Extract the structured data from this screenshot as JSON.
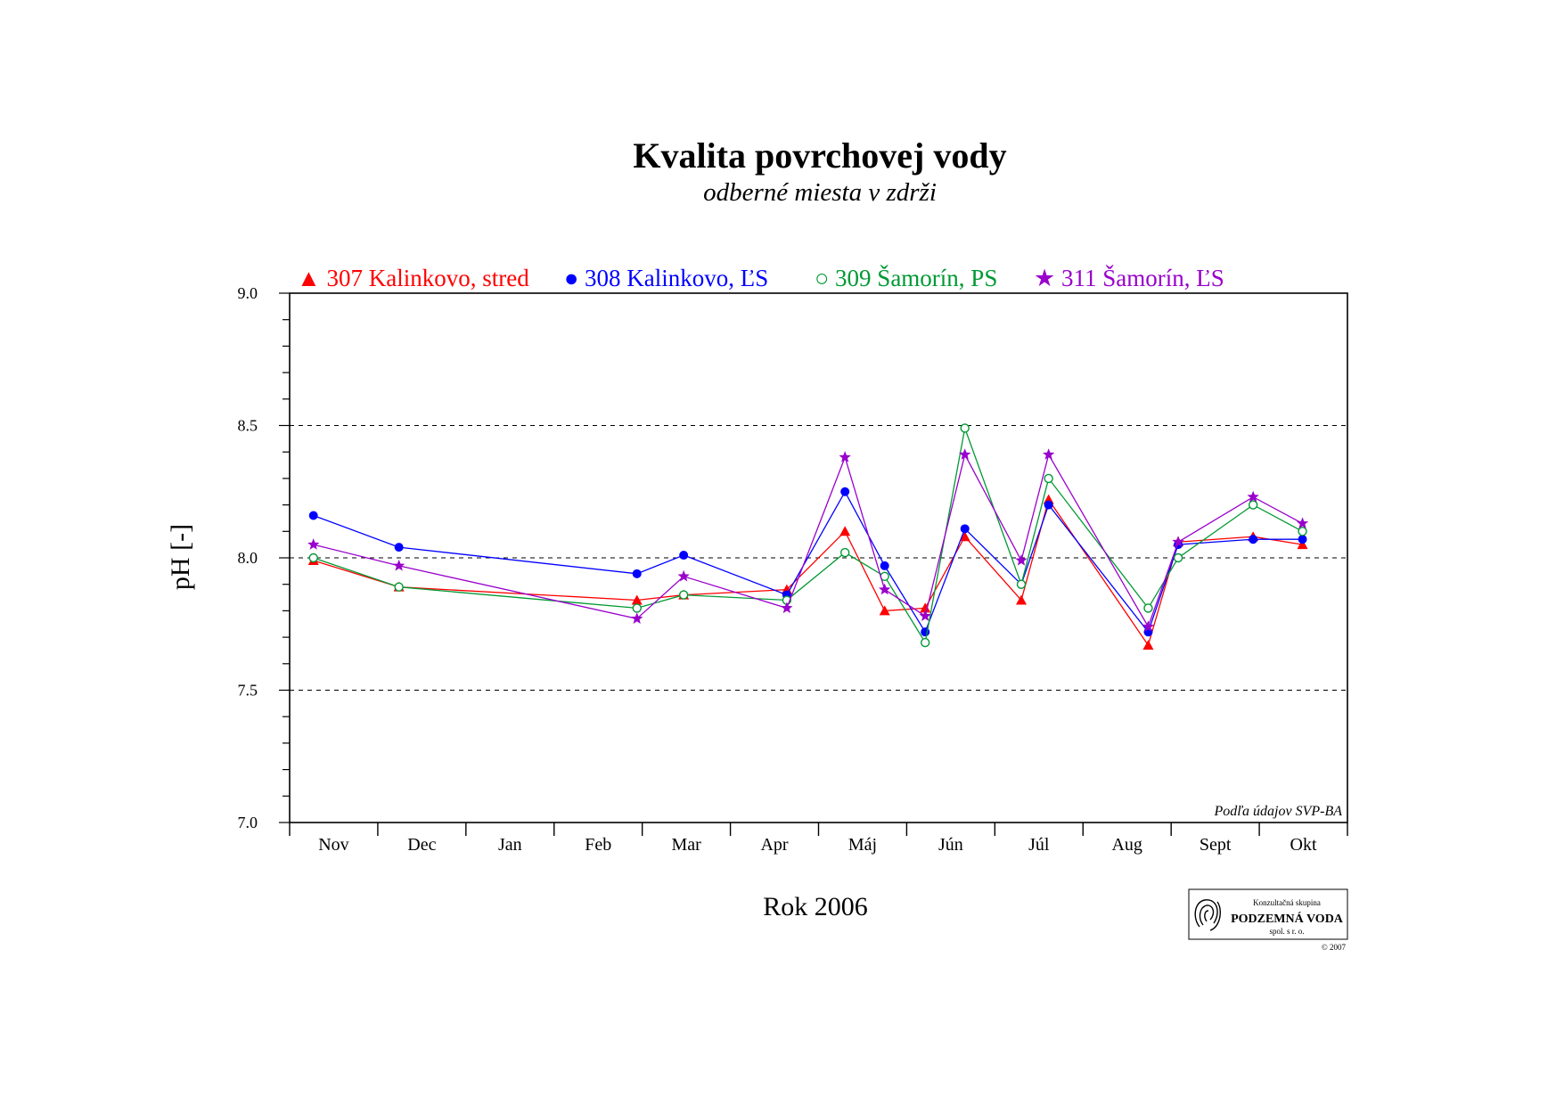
{
  "chart_data": {
    "type": "line",
    "title": "Kvalita povrchovej vody",
    "subtitle": "odberné miesta v zdrži",
    "ylabel": "pH [-]",
    "xlabel": "Rok 2006",
    "ylim": [
      7.0,
      9.0
    ],
    "yticks": [
      "7.0",
      "7.5",
      "8.0",
      "8.5",
      "9.0"
    ],
    "months": [
      "Nov",
      "Dec",
      "Jan",
      "Feb",
      "Mar",
      "Apr",
      "Máj",
      "Jún",
      "Júl",
      "Aug",
      "Sept",
      "Okt"
    ],
    "reference_lines": [
      7.5,
      8.0,
      8.5
    ],
    "legend_position": "top",
    "series": [
      {
        "name": "▲ 307 Kalinkovo, stred",
        "color": "#ff0000",
        "marker": "filled-triangle",
        "points": [
          [
            0.27,
            7.99
          ],
          [
            1.24,
            7.89
          ],
          [
            3.94,
            7.84
          ],
          [
            4.47,
            7.86
          ],
          [
            5.64,
            7.88
          ],
          [
            6.3,
            8.1
          ],
          [
            6.75,
            7.8
          ],
          [
            7.21,
            7.81
          ],
          [
            7.66,
            8.08
          ],
          [
            8.3,
            7.84
          ],
          [
            8.61,
            8.22
          ],
          [
            9.74,
            7.67
          ],
          [
            10.08,
            8.06
          ],
          [
            10.93,
            8.08
          ],
          [
            11.49,
            8.05
          ]
        ]
      },
      {
        "name": "● 308 Kalinkovo, ĽS",
        "color": "#0000ff",
        "marker": "filled-circle",
        "points": [
          [
            0.27,
            8.16
          ],
          [
            1.24,
            8.04
          ],
          [
            3.94,
            7.94
          ],
          [
            4.47,
            8.01
          ],
          [
            5.64,
            7.86
          ],
          [
            6.3,
            8.25
          ],
          [
            6.75,
            7.97
          ],
          [
            7.21,
            7.72
          ],
          [
            7.66,
            8.11
          ],
          [
            8.3,
            7.9
          ],
          [
            8.61,
            8.2
          ],
          [
            9.74,
            7.72
          ],
          [
            10.08,
            8.05
          ],
          [
            10.93,
            8.07
          ],
          [
            11.49,
            8.07
          ]
        ]
      },
      {
        "name": "○ 309 Šamorín, PS",
        "color": "#009933",
        "marker": "open-circle",
        "points": [
          [
            0.27,
            8.0
          ],
          [
            1.24,
            7.89
          ],
          [
            3.94,
            7.81
          ],
          [
            4.47,
            7.86
          ],
          [
            5.64,
            7.84
          ],
          [
            6.3,
            8.02
          ],
          [
            6.75,
            7.93
          ],
          [
            7.21,
            7.68
          ],
          [
            7.66,
            8.49
          ],
          [
            8.3,
            7.9
          ],
          [
            8.61,
            8.3
          ],
          [
            9.74,
            7.81
          ],
          [
            10.08,
            8.0
          ],
          [
            10.93,
            8.2
          ],
          [
            11.49,
            8.1
          ]
        ]
      },
      {
        "name": "★ 311 Šamorín, ĽS",
        "color": "#9900cc",
        "marker": "star",
        "points": [
          [
            0.27,
            8.05
          ],
          [
            1.24,
            7.97
          ],
          [
            3.94,
            7.77
          ],
          [
            4.47,
            7.93
          ],
          [
            5.64,
            7.81
          ],
          [
            6.3,
            8.38
          ],
          [
            6.75,
            7.88
          ],
          [
            7.21,
            7.78
          ],
          [
            7.66,
            8.39
          ],
          [
            8.3,
            7.99
          ],
          [
            8.61,
            8.39
          ],
          [
            9.74,
            7.74
          ],
          [
            10.08,
            8.06
          ],
          [
            10.93,
            8.23
          ],
          [
            11.49,
            8.13
          ]
        ]
      }
    ],
    "source_note": "Podľa údajov SVP-BA",
    "logo": {
      "line1": "Konzultačná skupina",
      "line2": "PODZEMNÁ VODA",
      "line3": "spol. s r. o.",
      "copyright": "© 2007"
    }
  }
}
